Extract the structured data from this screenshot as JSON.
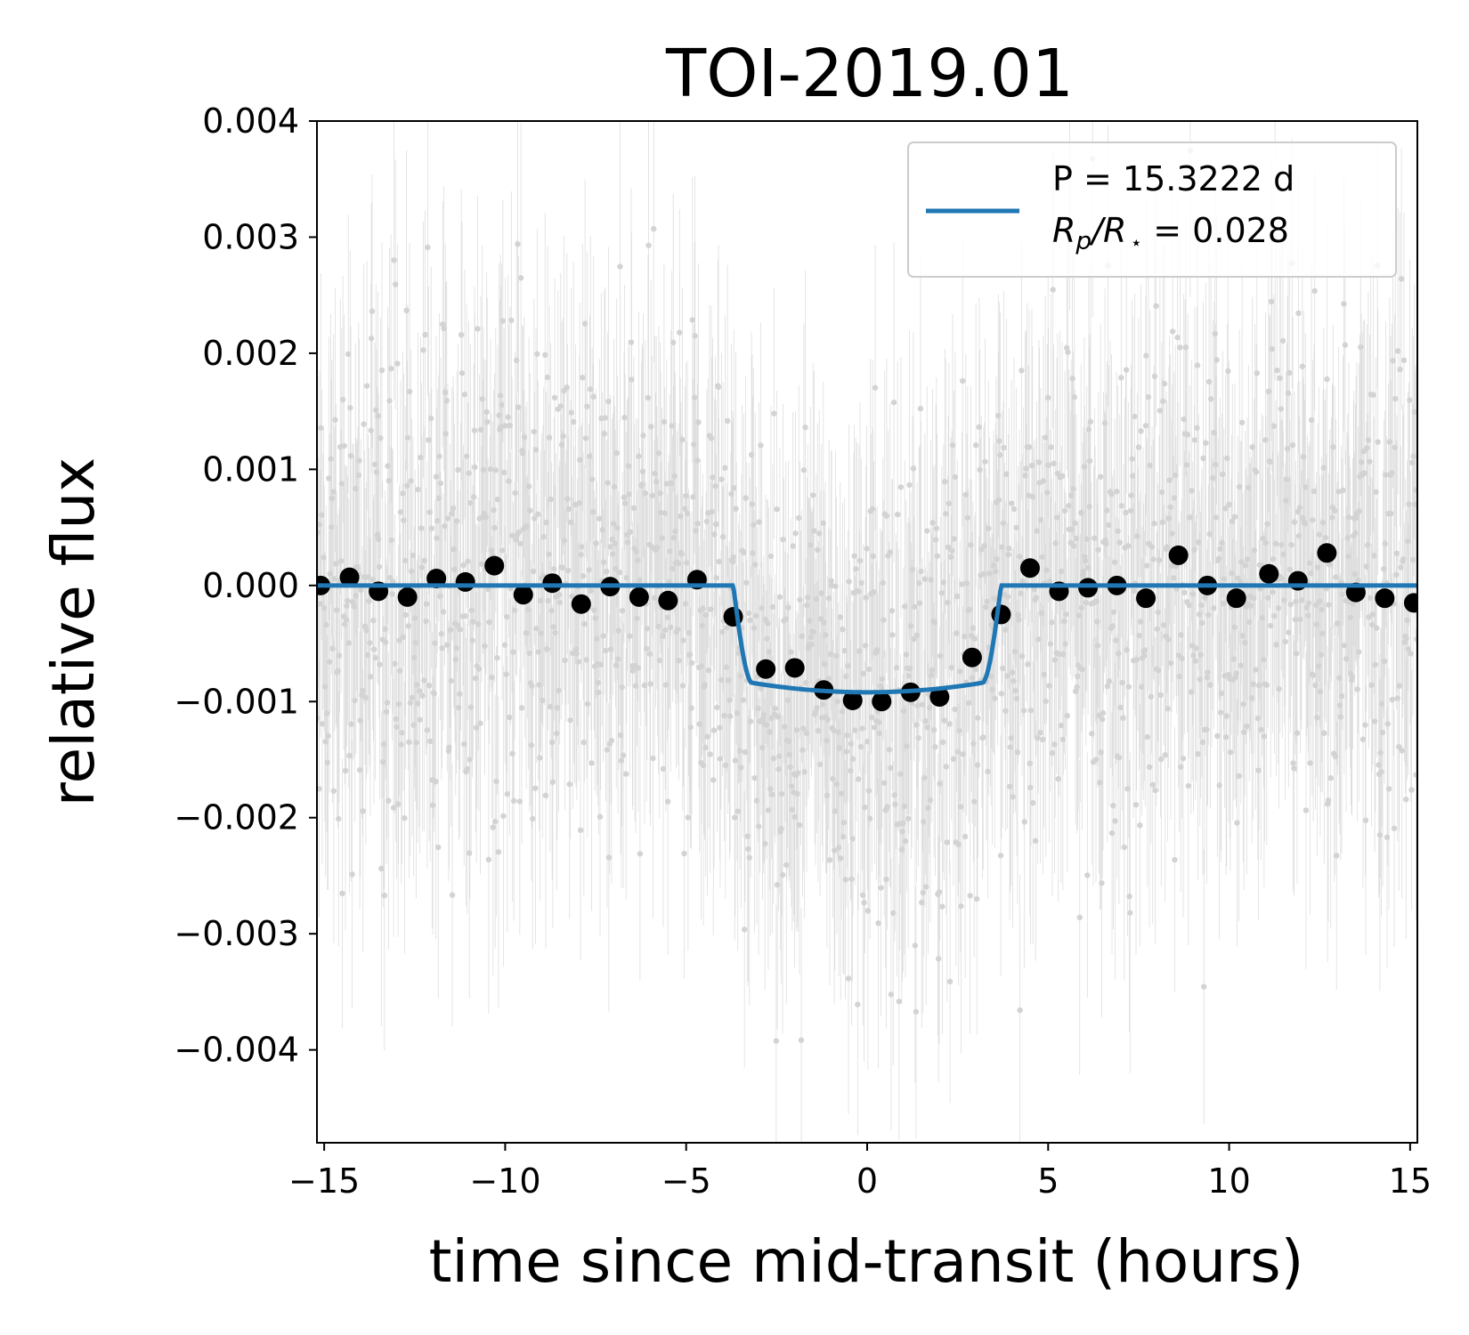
{
  "chart_data": {
    "type": "scatter",
    "title": "TOI-2019.01",
    "xlabel": "time since mid-transit (hours)",
    "ylabel": "relative flux",
    "xlim": [
      -15.2,
      15.2
    ],
    "ylim": [
      -0.0048,
      0.004
    ],
    "x_ticks": [
      -15,
      -10,
      -5,
      0,
      5,
      10,
      15
    ],
    "x_tick_labels": [
      "−15",
      "−10",
      "−5",
      "0",
      "5",
      "10",
      "15"
    ],
    "y_ticks": [
      0.004,
      0.003,
      0.002,
      0.001,
      0.0,
      -0.001,
      -0.002,
      -0.003,
      -0.004
    ],
    "y_tick_labels": [
      "0.004",
      "0.003",
      "0.002",
      "0.001",
      "0.000",
      "−0.001",
      "−0.002",
      "−0.003",
      "−0.004"
    ],
    "grid": false,
    "legend_position": "top-right",
    "legend": {
      "line1": "P = 15.3222 d",
      "line2_R": "R",
      "line2_p": "p",
      "line2_slash": "/",
      "line2_R2": "R",
      "line2_star": "⋆",
      "line2_value": " = 0.028"
    },
    "colors": {
      "model": "#1f77b4",
      "binned": "#000000",
      "raw": "#d3d3d3"
    },
    "raw_data": {
      "description_note": "",
      "x_range": [
        -15.2,
        15.2
      ],
      "typical_scatter": 0.0011,
      "typical_error": 0.0012
    },
    "series": [
      {
        "name": "P = 15.3222 d",
        "kind": "model",
        "transit": {
          "depth": 0.00092,
          "half_duration": 3.7,
          "ingress": 0.5
        }
      },
      {
        "kind": "binned",
        "x": [
          -15.1,
          -14.3,
          -13.5,
          -12.7,
          -11.9,
          -11.1,
          -10.3,
          -9.5,
          -8.7,
          -7.9,
          -7.1,
          -6.3,
          -5.5,
          -4.7,
          -3.7,
          -2.8,
          -2.0,
          -1.2,
          -0.4,
          0.4,
          1.2,
          2.0,
          2.9,
          3.7,
          4.5,
          5.3,
          6.1,
          6.9,
          7.7,
          8.6,
          9.4,
          10.2,
          11.1,
          11.9,
          12.7,
          13.5,
          14.3,
          15.1
        ],
        "y": [
          0.0,
          7e-05,
          -5e-05,
          -0.0001,
          6e-05,
          3e-05,
          0.00017,
          -8e-05,
          2e-05,
          -0.00016,
          -1e-05,
          -0.0001,
          -0.00013,
          5e-05,
          -0.00027,
          -0.00072,
          -0.00071,
          -0.0009,
          -0.00099,
          -0.001,
          -0.00092,
          -0.00096,
          -0.00062,
          -0.00025,
          0.00015,
          -5e-05,
          -2e-05,
          0.0,
          -0.00011,
          0.00026,
          0.0,
          -0.00011,
          0.0001,
          4e-05,
          0.00028,
          -6e-05,
          -0.00011,
          -0.00015
        ]
      }
    ]
  }
}
